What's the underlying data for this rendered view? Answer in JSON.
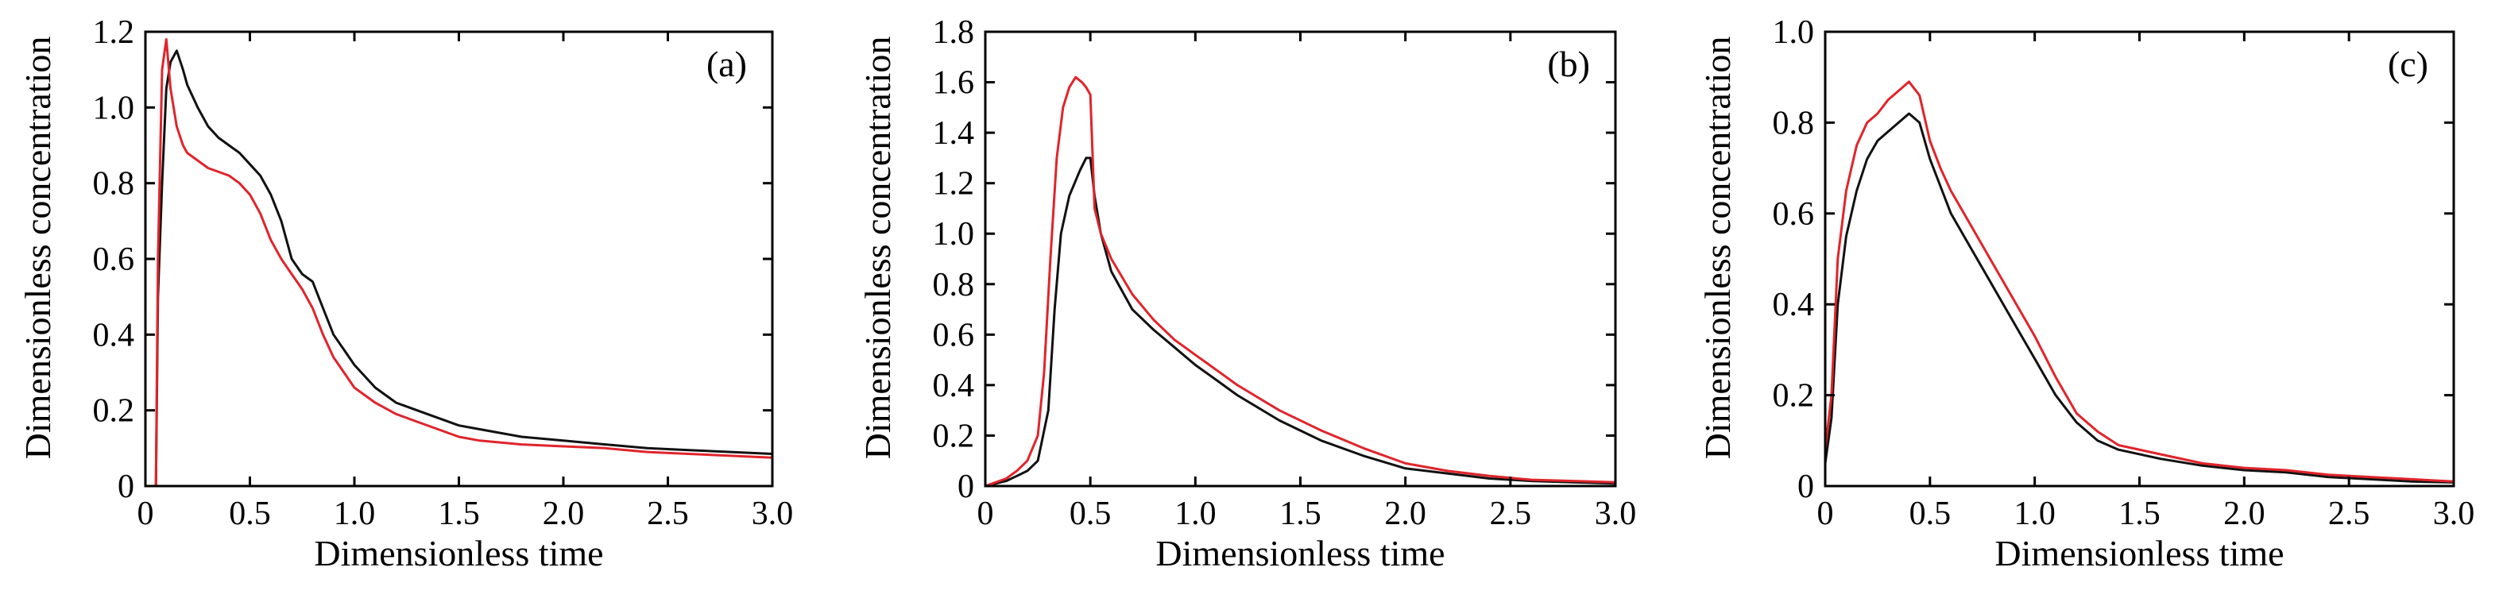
{
  "colors": {
    "series_black": "#111111",
    "series_red": "#e0242b"
  },
  "chart_data": [
    {
      "type": "line",
      "panel_label": "(a)",
      "xlabel": "Dimensionless time",
      "ylabel": "Dimensionless concentration",
      "xlim": [
        0,
        3.0
      ],
      "ylim": [
        0,
        1.2
      ],
      "xticks": [
        "0",
        "0.5",
        "1.0",
        "1.5",
        "2.0",
        "2.5",
        "3.0"
      ],
      "yticks": [
        "0",
        "0.2",
        "0.4",
        "0.6",
        "0.8",
        "1.0",
        "1.2"
      ],
      "series": [
        {
          "color": "#111111",
          "x": [
            0,
            0.05,
            0.06,
            0.08,
            0.1,
            0.12,
            0.15,
            0.18,
            0.2,
            0.25,
            0.3,
            0.35,
            0.4,
            0.45,
            0.5,
            0.55,
            0.6,
            0.65,
            0.7,
            0.75,
            0.8,
            0.85,
            0.9,
            0.95,
            1.0,
            1.1,
            1.2,
            1.3,
            1.4,
            1.5,
            1.6,
            1.8,
            2.0,
            2.2,
            2.4,
            2.6,
            2.8,
            3.0
          ],
          "y": [
            0,
            0,
            0.5,
            0.8,
            1.05,
            1.12,
            1.15,
            1.1,
            1.06,
            1.0,
            0.95,
            0.92,
            0.9,
            0.88,
            0.85,
            0.82,
            0.77,
            0.7,
            0.6,
            0.56,
            0.54,
            0.47,
            0.4,
            0.36,
            0.32,
            0.26,
            0.22,
            0.2,
            0.18,
            0.16,
            0.15,
            0.13,
            0.12,
            0.11,
            0.1,
            0.095,
            0.09,
            0.085
          ]
        },
        {
          "color": "#e0242b",
          "x": [
            0,
            0.05,
            0.06,
            0.08,
            0.1,
            0.12,
            0.15,
            0.18,
            0.2,
            0.25,
            0.3,
            0.35,
            0.4,
            0.45,
            0.5,
            0.55,
            0.6,
            0.65,
            0.7,
            0.75,
            0.8,
            0.85,
            0.9,
            0.95,
            1.0,
            1.1,
            1.2,
            1.3,
            1.4,
            1.5,
            1.6,
            1.8,
            2.0,
            2.2,
            2.4,
            2.6,
            2.8,
            3.0
          ],
          "y": [
            0,
            0,
            0.6,
            1.1,
            1.18,
            1.05,
            0.95,
            0.9,
            0.88,
            0.86,
            0.84,
            0.83,
            0.82,
            0.8,
            0.77,
            0.72,
            0.65,
            0.6,
            0.56,
            0.52,
            0.47,
            0.4,
            0.34,
            0.3,
            0.26,
            0.22,
            0.19,
            0.17,
            0.15,
            0.13,
            0.12,
            0.11,
            0.105,
            0.1,
            0.09,
            0.085,
            0.08,
            0.075
          ]
        }
      ]
    },
    {
      "type": "line",
      "panel_label": "(b)",
      "xlabel": "Dimensionless time",
      "ylabel": "Dimensionless concentration",
      "xlim": [
        0,
        3.0
      ],
      "ylim": [
        0,
        1.8
      ],
      "xticks": [
        "0",
        "0.5",
        "1.0",
        "1.5",
        "2.0",
        "2.5",
        "3.0"
      ],
      "yticks": [
        "0",
        "0.2",
        "0.4",
        "0.6",
        "0.8",
        "1.0",
        "1.2",
        "1.4",
        "1.6",
        "1.8"
      ],
      "series": [
        {
          "color": "#111111",
          "x": [
            0,
            0.1,
            0.15,
            0.2,
            0.25,
            0.3,
            0.33,
            0.36,
            0.4,
            0.45,
            0.48,
            0.5,
            0.52,
            0.55,
            0.6,
            0.7,
            0.8,
            0.9,
            1.0,
            1.1,
            1.2,
            1.4,
            1.6,
            1.8,
            2.0,
            2.2,
            2.4,
            2.6,
            2.8,
            3.0
          ],
          "y": [
            0,
            0.02,
            0.04,
            0.06,
            0.1,
            0.3,
            0.7,
            1.0,
            1.15,
            1.25,
            1.3,
            1.3,
            1.15,
            1.0,
            0.85,
            0.7,
            0.62,
            0.55,
            0.48,
            0.42,
            0.36,
            0.26,
            0.18,
            0.12,
            0.07,
            0.05,
            0.03,
            0.02,
            0.015,
            0.01
          ]
        },
        {
          "color": "#e0242b",
          "x": [
            0,
            0.1,
            0.15,
            0.2,
            0.25,
            0.28,
            0.31,
            0.34,
            0.37,
            0.4,
            0.43,
            0.46,
            0.48,
            0.5,
            0.52,
            0.55,
            0.6,
            0.7,
            0.8,
            0.9,
            1.0,
            1.1,
            1.2,
            1.4,
            1.6,
            1.8,
            2.0,
            2.2,
            2.4,
            2.6,
            2.8,
            3.0
          ],
          "y": [
            0,
            0.03,
            0.06,
            0.1,
            0.2,
            0.45,
            0.9,
            1.3,
            1.5,
            1.58,
            1.62,
            1.6,
            1.58,
            1.55,
            1.1,
            1.0,
            0.9,
            0.76,
            0.66,
            0.58,
            0.52,
            0.46,
            0.4,
            0.3,
            0.22,
            0.15,
            0.09,
            0.06,
            0.04,
            0.025,
            0.02,
            0.015
          ]
        }
      ]
    },
    {
      "type": "line",
      "panel_label": "(c)",
      "xlabel": "Dimensionless time",
      "ylabel": "Dimensionless concentration",
      "xlim": [
        0,
        3.0
      ],
      "ylim": [
        0,
        1.0
      ],
      "xticks": [
        "0",
        "0.5",
        "1.0",
        "1.5",
        "2.0",
        "2.5",
        "3.0"
      ],
      "yticks": [
        "0",
        "0.2",
        "0.4",
        "0.6",
        "0.8",
        "1.0"
      ],
      "series": [
        {
          "color": "#111111",
          "x": [
            0,
            0.03,
            0.06,
            0.1,
            0.15,
            0.2,
            0.25,
            0.3,
            0.35,
            0.4,
            0.45,
            0.5,
            0.55,
            0.6,
            0.7,
            0.8,
            0.9,
            1.0,
            1.1,
            1.2,
            1.3,
            1.4,
            1.6,
            1.8,
            2.0,
            2.2,
            2.4,
            2.6,
            2.8,
            3.0
          ],
          "y": [
            0.05,
            0.15,
            0.4,
            0.55,
            0.65,
            0.72,
            0.76,
            0.78,
            0.8,
            0.82,
            0.8,
            0.72,
            0.66,
            0.6,
            0.52,
            0.44,
            0.36,
            0.28,
            0.2,
            0.14,
            0.1,
            0.08,
            0.06,
            0.045,
            0.035,
            0.03,
            0.02,
            0.015,
            0.01,
            0.008
          ]
        },
        {
          "color": "#e0242b",
          "x": [
            0,
            0.03,
            0.06,
            0.1,
            0.15,
            0.2,
            0.25,
            0.3,
            0.35,
            0.4,
            0.45,
            0.5,
            0.55,
            0.6,
            0.7,
            0.8,
            0.9,
            1.0,
            1.1,
            1.2,
            1.3,
            1.4,
            1.6,
            1.8,
            2.0,
            2.2,
            2.4,
            2.6,
            2.8,
            3.0
          ],
          "y": [
            0.08,
            0.2,
            0.5,
            0.65,
            0.75,
            0.8,
            0.82,
            0.85,
            0.87,
            0.89,
            0.86,
            0.76,
            0.7,
            0.65,
            0.57,
            0.49,
            0.41,
            0.33,
            0.24,
            0.16,
            0.12,
            0.09,
            0.07,
            0.05,
            0.04,
            0.035,
            0.025,
            0.02,
            0.015,
            0.01
          ]
        }
      ]
    }
  ]
}
